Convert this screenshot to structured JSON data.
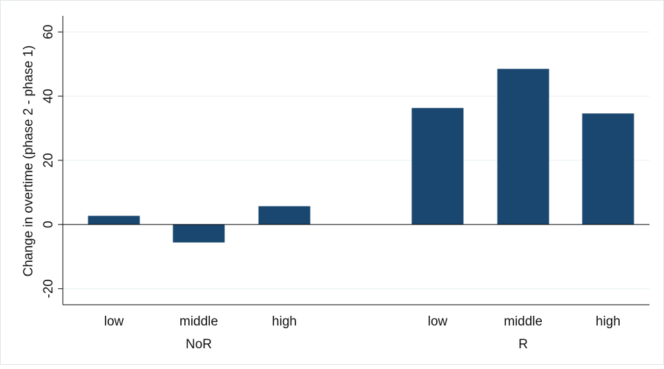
{
  "chart_data": {
    "type": "bar",
    "ylabel": "Change in overtime (phase 2 - phase 1)",
    "ylim": [
      -25,
      65
    ],
    "yticks": [
      -20,
      0,
      20,
      40,
      60
    ],
    "ytick_labels": [
      "-20",
      "0",
      "20",
      "40",
      "60"
    ],
    "groups": [
      {
        "label": "NoR",
        "categories": [
          "low",
          "middle",
          "high"
        ],
        "values": [
          2.7,
          -5.6,
          5.7
        ]
      },
      {
        "label": "R",
        "categories": [
          "low",
          "middle",
          "high"
        ],
        "values": [
          36.3,
          48.5,
          34.6
        ]
      }
    ],
    "bar_color": "#1a476f",
    "gridlines": true,
    "grid_color": "#eaf2f3"
  }
}
